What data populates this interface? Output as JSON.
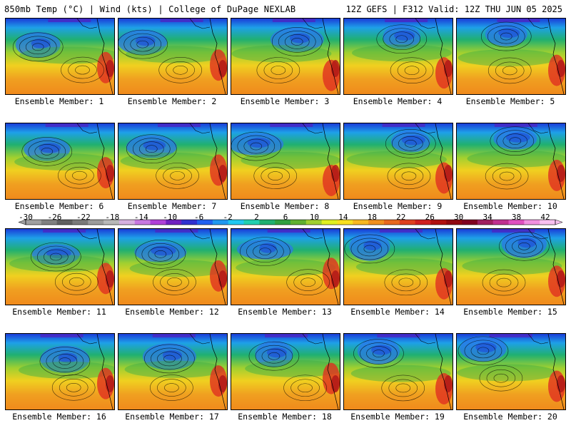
{
  "header": {
    "left": "850mb Temp (°C) | Wind (kts) | College of DuPage NEXLAB",
    "right": "12Z GEFS | F312 Valid: 12Z THU JUN 05 2025"
  },
  "member_prefix": "Ensemble Member",
  "members": [
    {
      "label": "Ensemble Member: 1"
    },
    {
      "label": "Ensemble Member: 2"
    },
    {
      "label": "Ensemble Member: 3"
    },
    {
      "label": "Ensemble Member: 4"
    },
    {
      "label": "Ensemble Member: 5"
    },
    {
      "label": "Ensemble Member: 6"
    },
    {
      "label": "Ensemble Member: 7"
    },
    {
      "label": "Ensemble Member: 8"
    },
    {
      "label": "Ensemble Member: 9"
    },
    {
      "label": "Ensemble Member: 10"
    },
    {
      "label": "Ensemble Member: 11"
    },
    {
      "label": "Ensemble Member: 12"
    },
    {
      "label": "Ensemble Member: 13"
    },
    {
      "label": "Ensemble Member: 14"
    },
    {
      "label": "Ensemble Member: 15"
    },
    {
      "label": "Ensemble Member: 16"
    },
    {
      "label": "Ensemble Member: 17"
    },
    {
      "label": "Ensemble Member: 18"
    },
    {
      "label": "Ensemble Member: 19"
    },
    {
      "label": "Ensemble Member: 20"
    }
  ],
  "colorbar": {
    "ticks": [
      "-30",
      "-26",
      "-22",
      "-18",
      "-14",
      "-10",
      "-6",
      "-2",
      "2",
      "6",
      "10",
      "14",
      "18",
      "22",
      "26",
      "30",
      "34",
      "38",
      "42"
    ],
    "colors": [
      "#a0a0a0",
      "#808080",
      "#606060",
      "#7a7a7a",
      "#9c9c9c",
      "#b8b8b8",
      "#d6b0e0",
      "#c878e0",
      "#b040d8",
      "#7020c0",
      "#3030d0",
      "#2060f0",
      "#2098f0",
      "#20c8f0",
      "#20d0b0",
      "#20b070",
      "#30a040",
      "#60b030",
      "#a0d030",
      "#e0f020",
      "#f8e020",
      "#f8b820",
      "#f09020",
      "#e86820",
      "#e04020",
      "#d02020",
      "#b01010",
      "#900810",
      "#800020",
      "#a02060",
      "#c03090",
      "#e050c0",
      "#f090e0",
      "#f8c0f0"
    ]
  }
}
